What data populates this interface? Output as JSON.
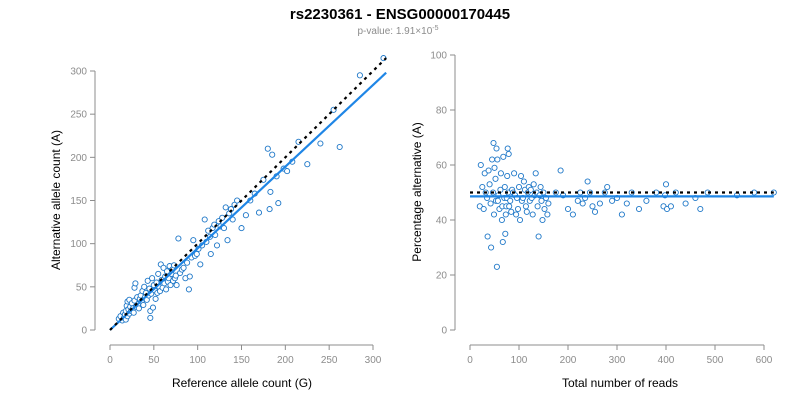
{
  "title": "rs2230361 - ENSG00000170445",
  "subtitle_prefix": "p-value: 1.91×10",
  "subtitle_exponent": "-5",
  "colors": {
    "points": "#1f78c8",
    "fit": "#1f86e6",
    "reference": "#000000",
    "ticks": "#8c8c8c"
  },
  "chart_data": [
    {
      "type": "scatter",
      "xlabel": "Reference allele count (G)",
      "ylabel": "Alternative allele count (A)",
      "xlim": [
        0,
        310
      ],
      "ylim": [
        0,
        310
      ],
      "xticks": [
        0,
        50,
        100,
        150,
        200,
        250,
        300
      ],
      "yticks": [
        0,
        50,
        100,
        150,
        200,
        250,
        300
      ],
      "reference_line": {
        "x": [
          0,
          315
        ],
        "y": [
          0,
          315
        ],
        "style": "dotted"
      },
      "fit_line": {
        "x": [
          0,
          315
        ],
        "y": [
          0,
          298
        ],
        "style": "solid"
      },
      "points": [
        [
          10,
          13
        ],
        [
          12,
          16
        ],
        [
          14,
          11
        ],
        [
          15,
          20
        ],
        [
          16,
          14
        ],
        [
          17,
          18
        ],
        [
          18,
          22
        ],
        [
          18,
          12
        ],
        [
          19,
          28
        ],
        [
          20,
          16
        ],
        [
          20,
          33
        ],
        [
          21,
          24
        ],
        [
          22,
          19
        ],
        [
          22,
          35
        ],
        [
          23,
          27
        ],
        [
          24,
          22
        ],
        [
          25,
          31
        ],
        [
          26,
          25
        ],
        [
          27,
          20
        ],
        [
          28,
          34
        ],
        [
          28,
          49
        ],
        [
          29,
          54
        ],
        [
          30,
          27
        ],
        [
          31,
          38
        ],
        [
          32,
          30
        ],
        [
          33,
          25
        ],
        [
          34,
          36
        ],
        [
          35,
          40
        ],
        [
          36,
          33
        ],
        [
          37,
          45
        ],
        [
          38,
          29
        ],
        [
          39,
          50
        ],
        [
          40,
          38
        ],
        [
          41,
          43
        ],
        [
          42,
          35
        ],
        [
          43,
          57
        ],
        [
          44,
          40
        ],
        [
          45,
          48
        ],
        [
          46,
          22
        ],
        [
          46,
          14
        ],
        [
          47,
          42
        ],
        [
          48,
          60
        ],
        [
          49,
          26
        ],
        [
          50,
          52
        ],
        [
          51,
          46
        ],
        [
          52,
          36
        ],
        [
          53,
          55
        ],
        [
          54,
          43
        ],
        [
          55,
          65
        ],
        [
          56,
          50
        ],
        [
          57,
          45
        ],
        [
          58,
          76
        ],
        [
          59,
          58
        ],
        [
          60,
          49
        ],
        [
          61,
          72
        ],
        [
          62,
          54
        ],
        [
          63,
          62
        ],
        [
          64,
          47
        ],
        [
          65,
          68
        ],
        [
          66,
          56
        ],
        [
          67,
          60
        ],
        [
          68,
          74
        ],
        [
          69,
          52
        ],
        [
          70,
          65
        ],
        [
          71,
          70
        ],
        [
          72,
          57
        ],
        [
          73,
          75
        ],
        [
          74,
          60
        ],
        [
          75,
          63
        ],
        [
          76,
          52
        ],
        [
          78,
          106
        ],
        [
          80,
          66
        ],
        [
          82,
          70
        ],
        [
          84,
          72
        ],
        [
          86,
          60
        ],
        [
          88,
          78
        ],
        [
          90,
          47
        ],
        [
          91,
          62
        ],
        [
          93,
          84
        ],
        [
          95,
          104
        ],
        [
          97,
          86
        ],
        [
          99,
          88
        ],
        [
          101,
          94
        ],
        [
          103,
          76
        ],
        [
          105,
          98
        ],
        [
          108,
          128
        ],
        [
          110,
          102
        ],
        [
          112,
          115
        ],
        [
          114,
          108
        ],
        [
          115,
          88
        ],
        [
          117,
          118
        ],
        [
          119,
          122
        ],
        [
          120,
          110
        ],
        [
          122,
          98
        ],
        [
          124,
          126
        ],
        [
          126,
          120
        ],
        [
          128,
          130
        ],
        [
          130,
          118
        ],
        [
          132,
          142
        ],
        [
          134,
          104
        ],
        [
          136,
          135
        ],
        [
          138,
          140
        ],
        [
          140,
          128
        ],
        [
          142,
          145
        ],
        [
          145,
          150
        ],
        [
          150,
          118
        ],
        [
          155,
          133
        ],
        [
          160,
          150
        ],
        [
          165,
          158
        ],
        [
          170,
          136
        ],
        [
          175,
          174
        ],
        [
          180,
          210
        ],
        [
          182,
          140
        ],
        [
          183,
          160
        ],
        [
          185,
          203
        ],
        [
          190,
          178
        ],
        [
          192,
          147
        ],
        [
          198,
          187
        ],
        [
          202,
          184
        ],
        [
          208,
          195
        ],
        [
          215,
          218
        ],
        [
          225,
          192
        ],
        [
          240,
          216
        ],
        [
          255,
          255
        ],
        [
          262,
          212
        ],
        [
          285,
          295
        ],
        [
          312,
          315
        ]
      ]
    },
    {
      "type": "scatter",
      "xlabel": "Total number of reads",
      "ylabel": "Percentage alternative (A)",
      "xlim": [
        0,
        620
      ],
      "ylim": [
        0,
        100
      ],
      "xticks": [
        0,
        100,
        200,
        300,
        400,
        500,
        600
      ],
      "yticks": [
        0,
        20,
        40,
        60,
        80,
        100
      ],
      "reference_line": {
        "x": [
          0,
          620
        ],
        "y": [
          50,
          50
        ],
        "style": "dotted"
      },
      "fit_line": {
        "x": [
          0,
          620
        ],
        "y": [
          48.6,
          48.6
        ],
        "style": "solid"
      },
      "points": [
        [
          20,
          45
        ],
        [
          22,
          60
        ],
        [
          25,
          52
        ],
        [
          28,
          44
        ],
        [
          30,
          57
        ],
        [
          32,
          50
        ],
        [
          35,
          48
        ],
        [
          36,
          34
        ],
        [
          38,
          58
        ],
        [
          40,
          53
        ],
        [
          42,
          46
        ],
        [
          43,
          30
        ],
        [
          45,
          62
        ],
        [
          47,
          50
        ],
        [
          48,
          68
        ],
        [
          49,
          42
        ],
        [
          50,
          59
        ],
        [
          52,
          55
        ],
        [
          53,
          47
        ],
        [
          54,
          66
        ],
        [
          55,
          23
        ],
        [
          56,
          62
        ],
        [
          57,
          47
        ],
        [
          58,
          49
        ],
        [
          60,
          44
        ],
        [
          62,
          51
        ],
        [
          63,
          57
        ],
        [
          65,
          40
        ],
        [
          66,
          45
        ],
        [
          67,
          32
        ],
        [
          68,
          63
        ],
        [
          70,
          48
        ],
        [
          71,
          52
        ],
        [
          72,
          35
        ],
        [
          73,
          42
        ],
        [
          74,
          45
        ],
        [
          75,
          48
        ],
        [
          76,
          56
        ],
        [
          77,
          66
        ],
        [
          78,
          50
        ],
        [
          79,
          64
        ],
        [
          80,
          45
        ],
        [
          82,
          47
        ],
        [
          84,
          43
        ],
        [
          86,
          51
        ],
        [
          88,
          50
        ],
        [
          90,
          57
        ],
        [
          92,
          49
        ],
        [
          94,
          42
        ],
        [
          96,
          48
        ],
        [
          98,
          44
        ],
        [
          100,
          52
        ],
        [
          102,
          40
        ],
        [
          104,
          56
        ],
        [
          106,
          47
        ],
        [
          108,
          48
        ],
        [
          110,
          54
        ],
        [
          112,
          51
        ],
        [
          114,
          45
        ],
        [
          116,
          43
        ],
        [
          118,
          50
        ],
        [
          120,
          52
        ],
        [
          122,
          47
        ],
        [
          124,
          51
        ],
        [
          126,
          48
        ],
        [
          128,
          42
        ],
        [
          130,
          53
        ],
        [
          132,
          49
        ],
        [
          134,
          57
        ],
        [
          136,
          50
        ],
        [
          138,
          45
        ],
        [
          140,
          34
        ],
        [
          142,
          49
        ],
        [
          144,
          52
        ],
        [
          146,
          47
        ],
        [
          148,
          40
        ],
        [
          150,
          50
        ],
        [
          152,
          44
        ],
        [
          155,
          48
        ],
        [
          158,
          42
        ],
        [
          160,
          46
        ],
        [
          175,
          50
        ],
        [
          185,
          58
        ],
        [
          190,
          49
        ],
        [
          200,
          44
        ],
        [
          210,
          42
        ],
        [
          220,
          47
        ],
        [
          225,
          50
        ],
        [
          230,
          46
        ],
        [
          235,
          48
        ],
        [
          240,
          54
        ],
        [
          245,
          50
        ],
        [
          250,
          45
        ],
        [
          255,
          43
        ],
        [
          265,
          46
        ],
        [
          275,
          50
        ],
        [
          280,
          52
        ],
        [
          290,
          47
        ],
        [
          300,
          48
        ],
        [
          310,
          42
        ],
        [
          320,
          46
        ],
        [
          330,
          50
        ],
        [
          345,
          44
        ],
        [
          360,
          47
        ],
        [
          380,
          50
        ],
        [
          395,
          45
        ],
        [
          398,
          49
        ],
        [
          400,
          53
        ],
        [
          402,
          44
        ],
        [
          410,
          45
        ],
        [
          420,
          50
        ],
        [
          440,
          46
        ],
        [
          460,
          48
        ],
        [
          470,
          44
        ],
        [
          485,
          50
        ],
        [
          545,
          49
        ],
        [
          580,
          50
        ],
        [
          620,
          50
        ]
      ]
    }
  ]
}
